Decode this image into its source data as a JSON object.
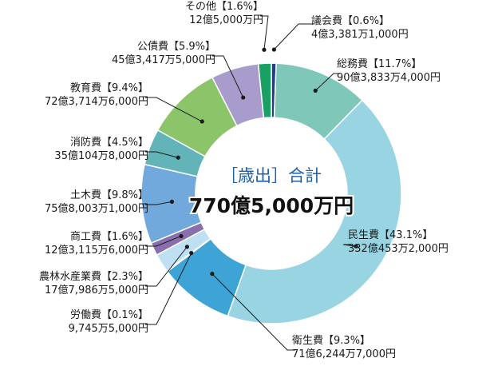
{
  "chart_data": {
    "type": "pie",
    "donut": true,
    "center": {
      "title": "［歳出］合計",
      "total": "770億5,000万円"
    },
    "slices": [
      {
        "category": "議会費",
        "percent_label": "【0.6%】",
        "percent": 0.6,
        "amount": "4億3,381万1,000円",
        "color": "#1f3f8c"
      },
      {
        "category": "総務費",
        "percent_label": "【11.7%】",
        "percent": 11.7,
        "amount": "90億3,833万4,000円",
        "color": "#7fc8b9"
      },
      {
        "category": "民生費",
        "percent_label": "【43.1%】",
        "percent": 43.1,
        "amount": "332億453万2,000円",
        "color": "#99d4e2"
      },
      {
        "category": "衛生費",
        "percent_label": "【9.3%】",
        "percent": 9.3,
        "amount": "71億6,244万7,000円",
        "color": "#3ea4d6"
      },
      {
        "category": "労働費",
        "percent_label": "【0.1%】",
        "percent": 0.1,
        "amount": "9,745万5,000円",
        "color": "#cfe6f1"
      },
      {
        "category": "農林水産業費",
        "percent_label": "【2.3%】",
        "percent": 2.3,
        "amount": "17億7,986万5,000円",
        "color": "#bfe0f3"
      },
      {
        "category": "商工費",
        "percent_label": "【1.6%】",
        "percent": 1.6,
        "amount": "12億3,115万6,000円",
        "color": "#8a6fae"
      },
      {
        "category": "土木費",
        "percent_label": "【9.8%】",
        "percent": 9.8,
        "amount": "75億8,003万1,000円",
        "color": "#72a9dc"
      },
      {
        "category": "消防費",
        "percent_label": "【4.5%】",
        "percent": 4.5,
        "amount": "35億104万8,000円",
        "color": "#62b4b9"
      },
      {
        "category": "教育費",
        "percent_label": "【9.4%】",
        "percent": 9.4,
        "amount": "72億3,714万6,000円",
        "color": "#8cc46a"
      },
      {
        "category": "公債費",
        "percent_label": "【5.9%】",
        "percent": 5.9,
        "amount": "45億3,417万5,000円",
        "color": "#a79ccb"
      },
      {
        "category": "その他",
        "percent_label": "【1.6%】",
        "percent": 1.6,
        "amount": "12億5,000万円",
        "color": "#1aa064"
      }
    ]
  }
}
